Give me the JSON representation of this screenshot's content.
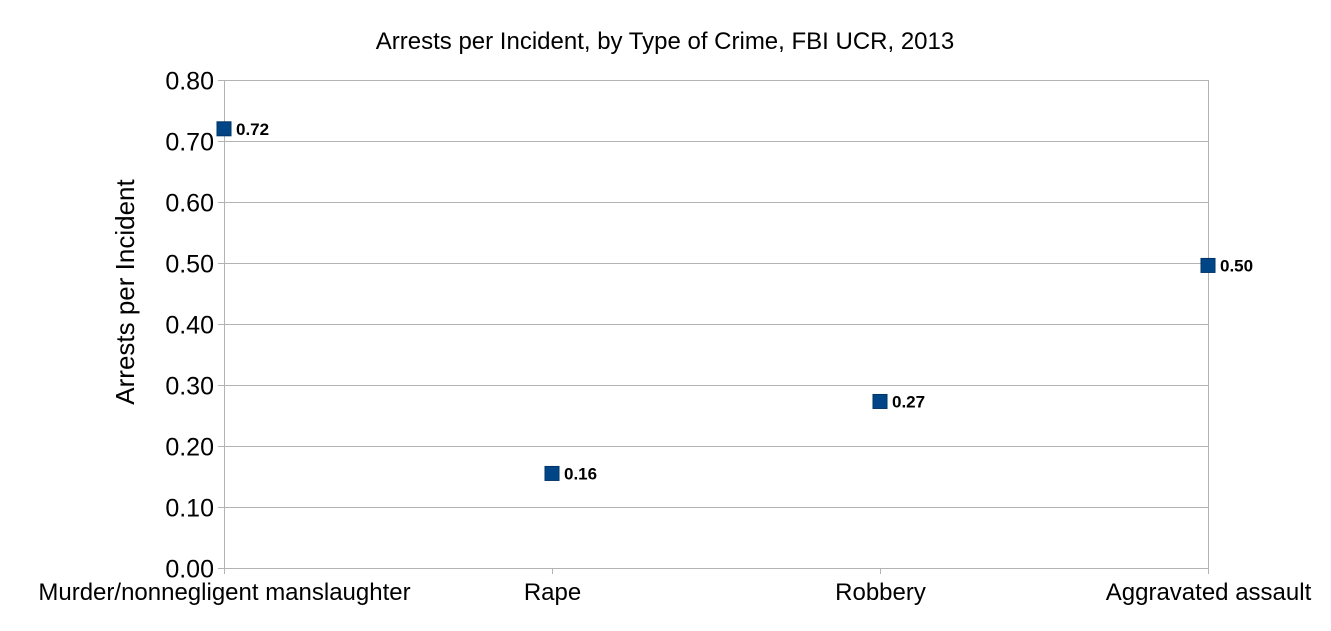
{
  "chart_data": {
    "type": "scatter",
    "title": "Arrests per Incident, by Type of Crime, FBI UCR, 2013",
    "xlabel": "",
    "ylabel": "Arrests per Incident",
    "categories": [
      "Murder/nonnegligent manslaughter",
      "Rape",
      "Robbery",
      "Aggravated assault"
    ],
    "series": [
      {
        "values": [
          0.72,
          0.155,
          0.273,
          0.496
        ],
        "data_labels": [
          "0.72",
          "0.16",
          "0.27",
          "0.50"
        ],
        "color": "#004586",
        "marker": "square"
      }
    ],
    "ylim": [
      0,
      0.8
    ],
    "yticks": [
      0,
      0.1,
      0.2,
      0.3,
      0.4,
      0.5,
      0.6,
      0.7,
      0.8
    ],
    "ytick_labels": [
      "0.00",
      "0.10",
      "0.20",
      "0.30",
      "0.40",
      "0.50",
      "0.60",
      "0.70",
      "0.80"
    ],
    "grid": true,
    "legend": "none"
  }
}
